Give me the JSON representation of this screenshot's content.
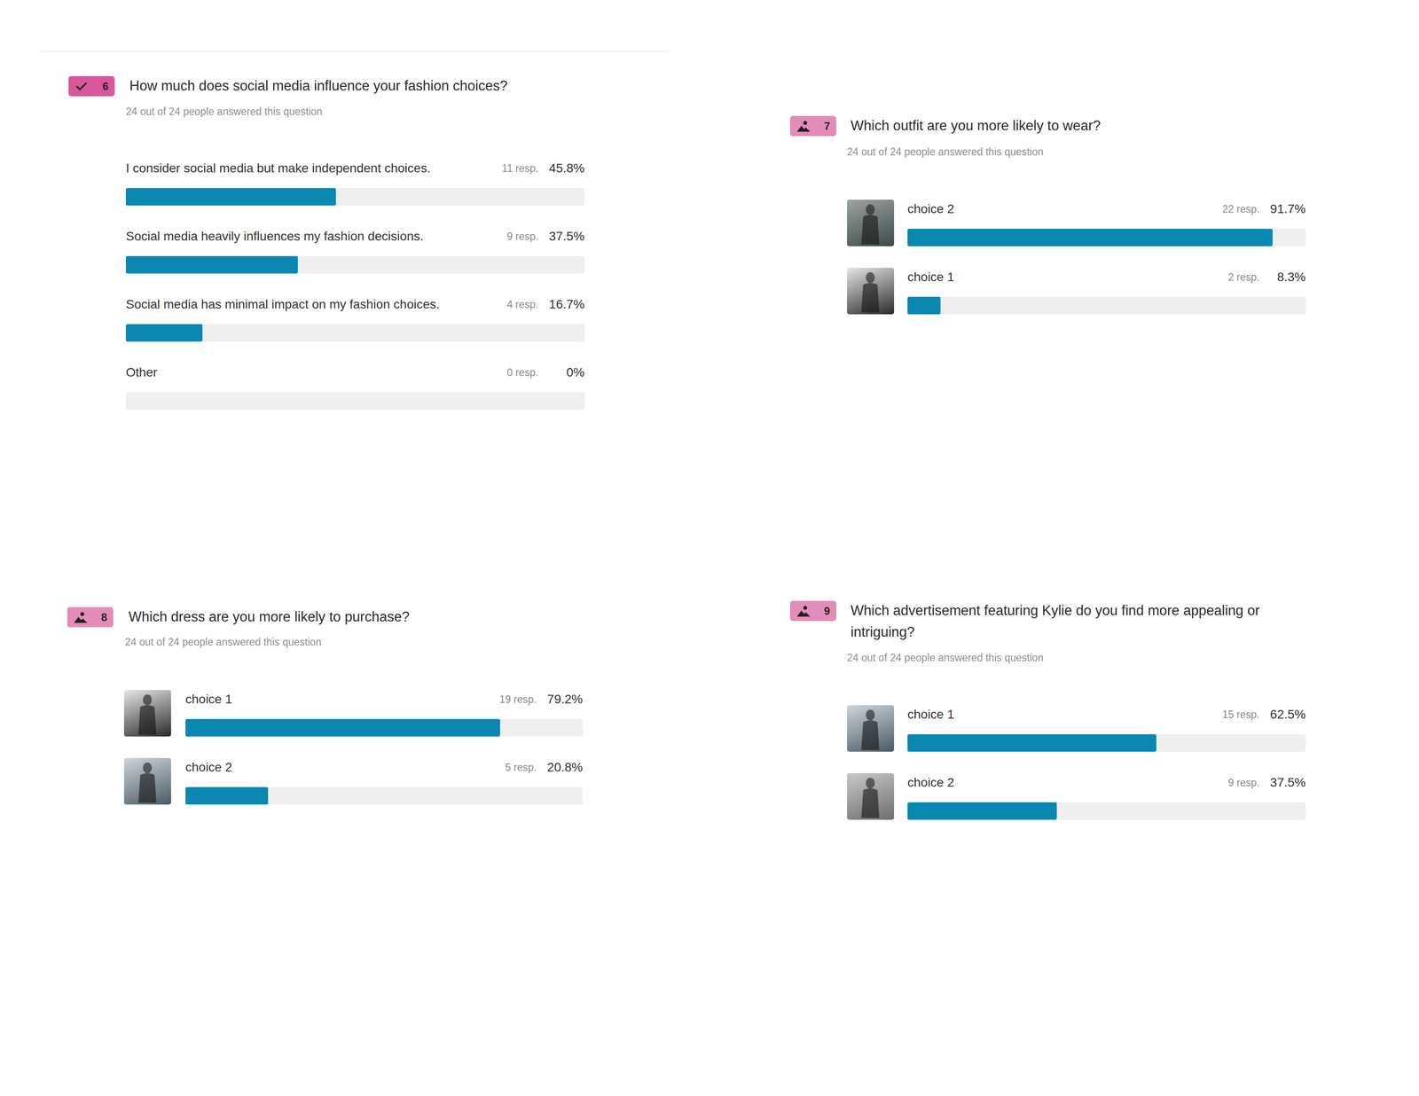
{
  "chart_data": [
    {
      "type": "bar",
      "orientation": "horizontal",
      "marker": "check",
      "question_number": 6,
      "title": "How much does social media influence your fashion choices?",
      "subtitle": "24 out of 24 people answered this question",
      "categories": [
        "I consider social media but make independent choices.",
        "Social media heavily influences my fashion decisions.",
        "Social media has minimal impact on my fashion choices.",
        "Other"
      ],
      "values": [
        45.8,
        37.5,
        16.7,
        0
      ],
      "value_labels": [
        "45.8%",
        "37.5%",
        "16.7%",
        "0%"
      ],
      "response_labels": [
        "11 resp.",
        "9 resp.",
        "4 resp.",
        "0 resp."
      ],
      "xlim": [
        0,
        100
      ],
      "tick_labels": false,
      "data_labels": true,
      "color": "#0a88b1"
    },
    {
      "type": "bar",
      "orientation": "horizontal",
      "marker": "image",
      "question_number": 7,
      "title": "Which outfit are you more likely to wear?",
      "subtitle": "24 out of 24 people answered this question",
      "categories": [
        "choice 2",
        "choice 1"
      ],
      "values": [
        91.7,
        8.3
      ],
      "value_labels": [
        "91.7%",
        "8.3%"
      ],
      "response_labels": [
        "22 resp.",
        "2 resp."
      ],
      "xlim": [
        0,
        100
      ],
      "tick_labels": false,
      "data_labels": true,
      "color": "#0a88b1"
    },
    {
      "type": "bar",
      "orientation": "horizontal",
      "marker": "image",
      "question_number": 8,
      "title": "Which dress are you more likely to purchase?",
      "subtitle": "24 out of 24 people answered this question",
      "categories": [
        "choice 1",
        "choice 2"
      ],
      "values": [
        79.2,
        20.8
      ],
      "value_labels": [
        "79.2%",
        "20.8%"
      ],
      "response_labels": [
        "19 resp.",
        "5 resp."
      ],
      "xlim": [
        0,
        100
      ],
      "tick_labels": false,
      "data_labels": true,
      "color": "#0a88b1"
    },
    {
      "type": "bar",
      "orientation": "horizontal",
      "marker": "image",
      "question_number": 9,
      "title": "Which advertisement featuring Kylie do you find more appealing or intriguing?",
      "subtitle": "24 out of 24 people answered this question",
      "categories": [
        "choice 1",
        "choice 2"
      ],
      "values": [
        62.5,
        37.5
      ],
      "value_labels": [
        "62.5%",
        "37.5%"
      ],
      "response_labels": [
        "15 resp.",
        "9 resp."
      ],
      "xlim": [
        0,
        100
      ],
      "tick_labels": false,
      "data_labels": true,
      "color": "#0a88b1"
    }
  ]
}
